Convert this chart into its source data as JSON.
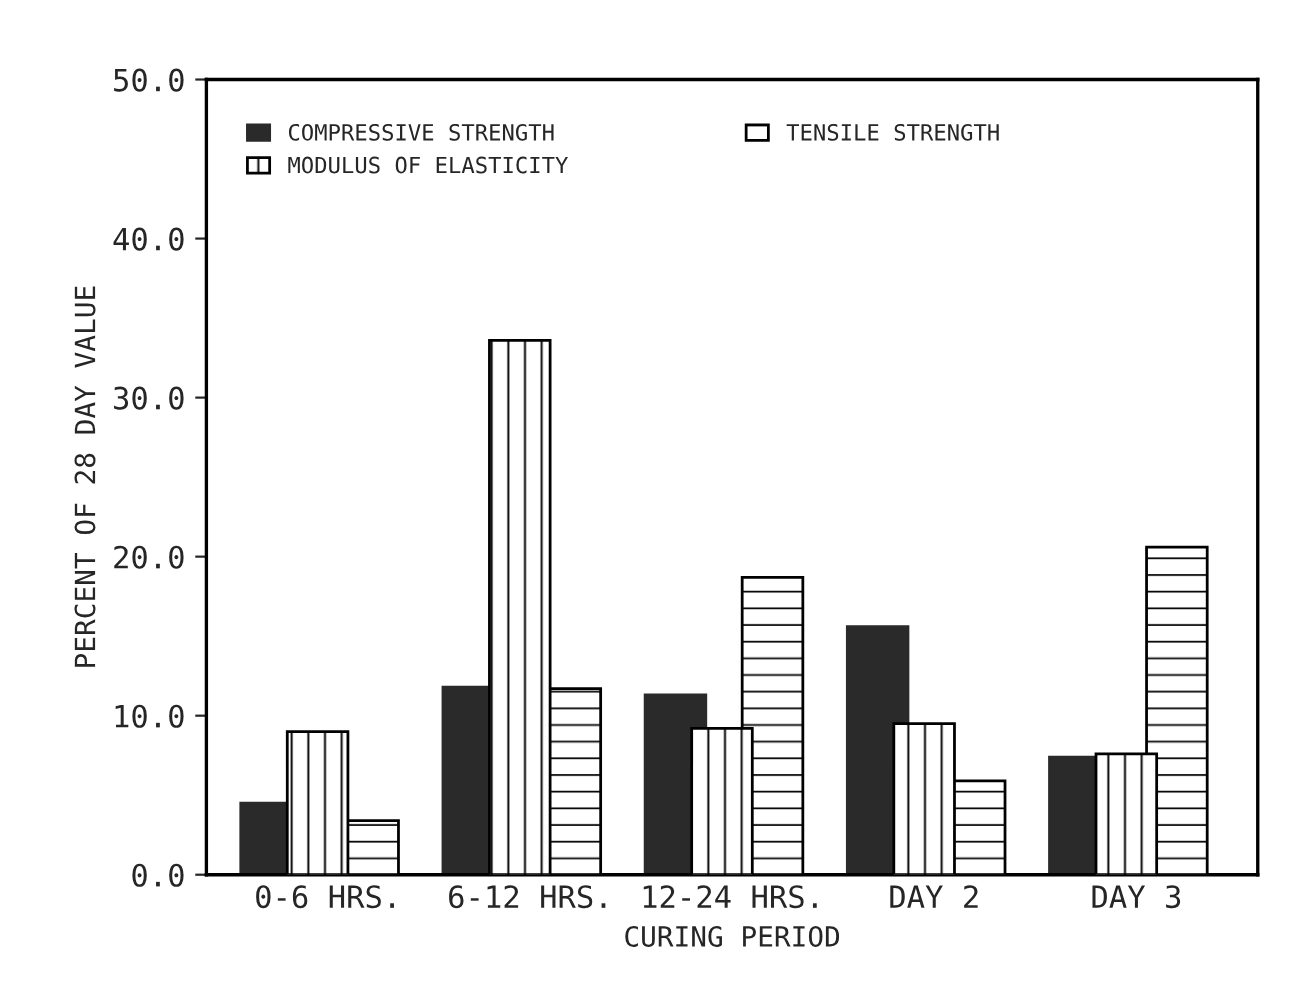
{
  "chart_data": {
    "type": "bar",
    "xlabel": "CURING PERIOD",
    "ylabel": "PERCENT OF 28 DAY VALUE",
    "categories": [
      "0-6 HRS.",
      "6-12 HRS.",
      "12-24 HRS.",
      "DAY 2",
      "DAY 3"
    ],
    "series": [
      {
        "name": "COMPRESSIVE STRENGTH",
        "color": "#2a2a2a",
        "values": [
          4.5,
          11.8,
          11.3,
          15.6,
          7.4
        ]
      },
      {
        "name": "MODULUS OF ELASTICITY",
        "color": "#000000",
        "values": [
          9.0,
          33.6,
          9.2,
          9.5,
          7.6
        ]
      },
      {
        "name": "TENSILE STRENGTH",
        "color": "#000000",
        "values": [
          3.4,
          11.7,
          18.7,
          5.9,
          20.6
        ]
      }
    ],
    "ylim": [
      0,
      50
    ],
    "yticks": [
      {
        "value": 0,
        "label": "0.0"
      },
      {
        "value": 10,
        "label": "10.0"
      },
      {
        "value": 20,
        "label": "20.0"
      },
      {
        "value": 30,
        "label": "30.0"
      },
      {
        "value": 40,
        "label": "40.0"
      },
      {
        "value": 50,
        "label": "50.0"
      }
    ],
    "legend": "top left",
    "grid": false
  }
}
